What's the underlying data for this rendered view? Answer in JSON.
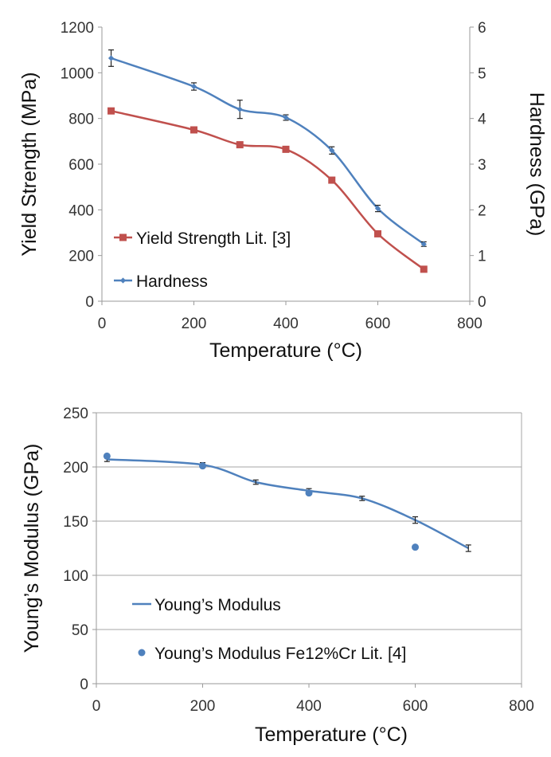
{
  "chart_data": [
    {
      "type": "line",
      "title": "",
      "xlabel": "Temperature (°C)",
      "ylabel": "Yield Strength (MPa)",
      "y2label": "Hardness (GPa)",
      "xlim": [
        0,
        800
      ],
      "ylim": [
        0,
        1200
      ],
      "y2lim": [
        0,
        6
      ],
      "xticks": [
        "0",
        "200",
        "400",
        "600",
        "800"
      ],
      "yticks": [
        "0",
        "200",
        "400",
        "600",
        "800",
        "1000",
        "1200"
      ],
      "y2ticks": [
        "0",
        "1",
        "2",
        "3",
        "4",
        "5",
        "6"
      ],
      "grid": false,
      "legend_position": "bottom-left",
      "series": [
        {
          "name": "Yield Strength Lit. [3]",
          "axis": "left",
          "color": "#c0504d",
          "marker": "square",
          "x": [
            20,
            200,
            300,
            400,
            500,
            600,
            700
          ],
          "y": [
            833,
            750,
            685,
            665,
            530,
            295,
            140
          ]
        },
        {
          "name": "Hardness",
          "axis": "right",
          "color": "#4f81bd",
          "marker": "diamond",
          "x": [
            20,
            200,
            300,
            400,
            500,
            600,
            700
          ],
          "y": [
            5.32,
            4.7,
            4.2,
            4.02,
            3.3,
            2.03,
            1.25
          ],
          "error": [
            0.18,
            0.08,
            0.2,
            0.06,
            0.08,
            0.07,
            0.05
          ]
        }
      ]
    },
    {
      "type": "line",
      "title": "",
      "xlabel": "Temperature (°C)",
      "ylabel": "Young’s Modulus (GPa)",
      "xlim": [
        0,
        800
      ],
      "ylim": [
        0,
        250
      ],
      "xticks": [
        "0",
        "200",
        "400",
        "600",
        "800"
      ],
      "yticks": [
        "0",
        "50",
        "100",
        "150",
        "200",
        "250"
      ],
      "grid": true,
      "legend_position": "bottom-left",
      "series": [
        {
          "name": "Young’s Modulus",
          "style": "line",
          "color": "#4f81bd",
          "x": [
            20,
            200,
            300,
            400,
            500,
            600,
            700
          ],
          "y": [
            207,
            202,
            186,
            178,
            171,
            151,
            125
          ],
          "error": [
            2,
            2,
            2,
            2,
            2,
            3,
            3
          ]
        },
        {
          "name": "Young’s Modulus Fe12%Cr Lit. [4]",
          "style": "scatter",
          "color": "#4f81bd",
          "x": [
            20,
            200,
            400,
            600
          ],
          "y": [
            210,
            201,
            176,
            126
          ]
        }
      ]
    }
  ]
}
